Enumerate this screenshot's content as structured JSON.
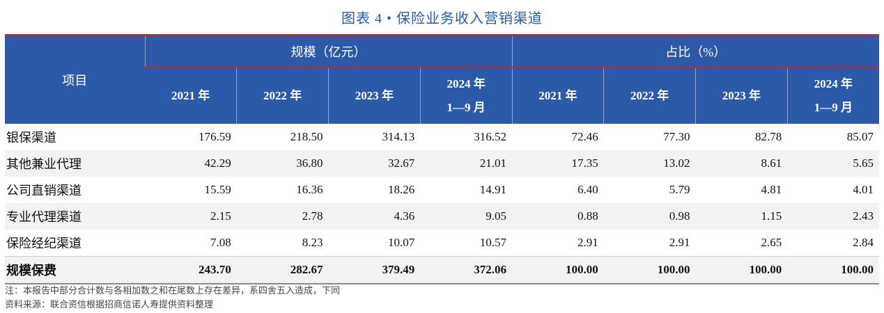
{
  "title": "图表 4 •  保险业务收入营销渠道",
  "header": {
    "item_label": "项目",
    "group_scale": "规模（亿元）",
    "group_share": "占比（%）",
    "years": [
      {
        "line1": "2021 年",
        "line2": ""
      },
      {
        "line1": "2022 年",
        "line2": ""
      },
      {
        "line1": "2023 年",
        "line2": ""
      },
      {
        "line1": "2024 年",
        "line2": "1—9 月"
      }
    ]
  },
  "rows": [
    {
      "name": "银保渠道",
      "values": [
        "176.59",
        "218.50",
        "314.13",
        "316.52",
        "72.46",
        "77.30",
        "82.78",
        "85.07"
      ]
    },
    {
      "name": "其他兼业代理",
      "values": [
        "42.29",
        "36.80",
        "32.67",
        "21.01",
        "17.35",
        "13.02",
        "8.61",
        "5.65"
      ]
    },
    {
      "name": "公司直销渠道",
      "values": [
        "15.59",
        "16.36",
        "18.26",
        "14.91",
        "6.40",
        "5.79",
        "4.81",
        "4.01"
      ]
    },
    {
      "name": "专业代理渠道",
      "values": [
        "2.15",
        "2.78",
        "4.36",
        "9.05",
        "0.88",
        "0.98",
        "1.15",
        "2.43"
      ]
    },
    {
      "name": "保险经纪渠道",
      "values": [
        "7.08",
        "8.23",
        "10.07",
        "10.57",
        "2.91",
        "2.91",
        "2.65",
        "2.84"
      ]
    },
    {
      "name": "规模保费",
      "values": [
        "243.70",
        "282.67",
        "379.49",
        "372.06",
        "100.00",
        "100.00",
        "100.00",
        "100.00"
      ]
    }
  ],
  "notes": {
    "note": "注：本报告中部分合计数与各相加数之和在尾数上存在差异，系四舍五入造成，下同",
    "source": "资料来源：联合资信根据招商信诺人寿提供资料整理"
  }
}
